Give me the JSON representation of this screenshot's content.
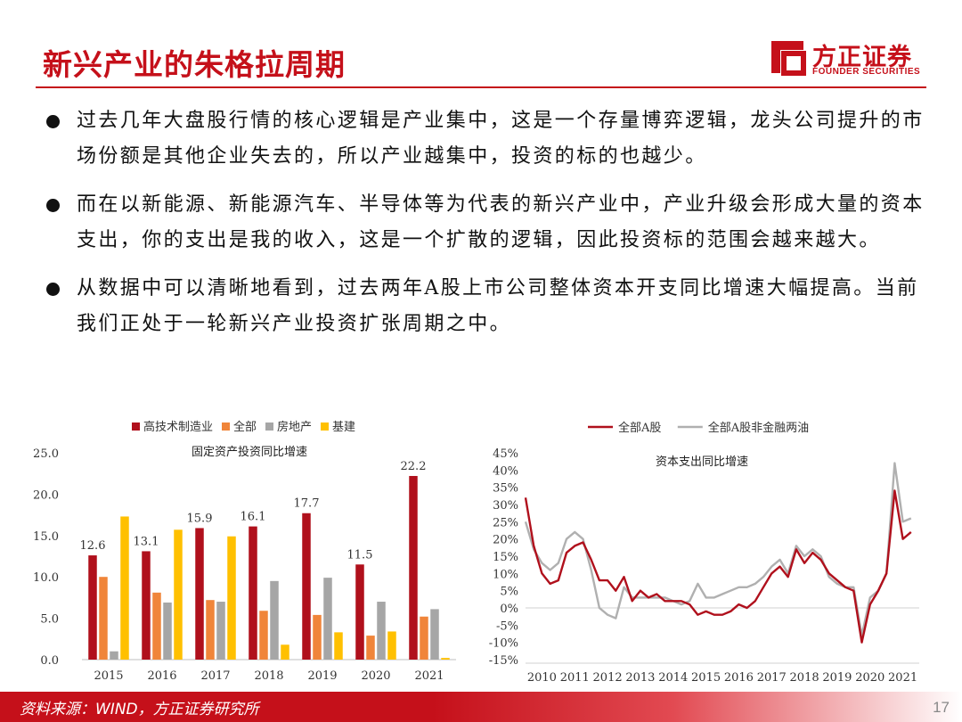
{
  "header": {
    "title": "新兴产业的朱格拉周期",
    "logo_name": "方正证券",
    "logo_sub": "FOUNDER SECURITIES"
  },
  "bullets": [
    "过去几年大盘股行情的核心逻辑是产业集中，这是一个存量博弈逻辑，龙头公司提升的市场份额是其他企业失去的，所以产业越集中，投资的标的也越少。",
    "而在以新能源、新能源汽车、半导体等为代表的新兴产业中，产业升级会形成大量的资本支出，你的支出是我的收入，这是一个扩散的逻辑，因此投资标的范围会越来越大。",
    "从数据中可以清晰地看到，过去两年A股上市公司整体资本开支同比增速大幅提高。当前我们正处于一轮新兴产业投资扩张周期之中。"
  ],
  "footer": {
    "source": "资料来源：WIND，方正证券研究所",
    "page": "17"
  },
  "colors": {
    "brand_red": "#c5101a",
    "series_dark_red": "#b0101c",
    "series_orange": "#f0853a",
    "series_gray": "#a6a6a6",
    "series_yellow": "#ffc000",
    "line_gray": "#b0b0b0"
  },
  "chart_data": [
    {
      "type": "bar",
      "title": "固定资产投资同比增速",
      "categories": [
        "2015",
        "2016",
        "2017",
        "2018",
        "2019",
        "2020",
        "2021"
      ],
      "ylim": [
        0,
        25
      ],
      "yticks": [
        "0.0",
        "5.0",
        "10.0",
        "15.0",
        "20.0",
        "25.0"
      ],
      "legend_position": "top",
      "grid": false,
      "series": [
        {
          "name": "高技术制造业",
          "color": "#b0101c",
          "values": [
            12.6,
            13.1,
            15.9,
            16.1,
            17.7,
            11.5,
            22.2
          ]
        },
        {
          "name": "全部",
          "color": "#f0853a",
          "values": [
            10.0,
            8.1,
            7.2,
            5.9,
            5.4,
            2.9,
            5.2
          ]
        },
        {
          "name": "房地产",
          "color": "#a6a6a6",
          "values": [
            1.0,
            6.9,
            7.0,
            9.5,
            9.9,
            7.0,
            6.1
          ]
        },
        {
          "name": "基建",
          "color": "#ffc000",
          "values": [
            17.3,
            15.7,
            14.9,
            1.8,
            3.3,
            3.4,
            0.2
          ]
        }
      ],
      "data_labels": {
        "series": "高技术制造业",
        "values": [
          "12.6",
          "13.1",
          "15.9",
          "16.1",
          "17.7",
          "11.5",
          "22.2"
        ]
      }
    },
    {
      "type": "line",
      "title": "资本支出同比增速",
      "x_labels": [
        "2010",
        "2011",
        "2012",
        "2013",
        "2014",
        "2015",
        "2016",
        "2017",
        "2018",
        "2019",
        "2020",
        "2021"
      ],
      "xlim": [
        2010.0,
        2022.0
      ],
      "ylim": [
        -15,
        45
      ],
      "yticks": [
        "-15%",
        "-10%",
        "-5%",
        "0%",
        "5%",
        "10%",
        "15%",
        "20%",
        "25%",
        "30%",
        "35%",
        "40%",
        "45%"
      ],
      "legend_position": "top",
      "grid": false,
      "series": [
        {
          "name": "全部A股",
          "color": "#b0101c",
          "points": [
            [
              2010.0,
              32
            ],
            [
              2010.25,
              18
            ],
            [
              2010.5,
              10
            ],
            [
              2010.75,
              7
            ],
            [
              2011.0,
              8
            ],
            [
              2011.25,
              16
            ],
            [
              2011.5,
              18
            ],
            [
              2011.75,
              19
            ],
            [
              2012.0,
              14
            ],
            [
              2012.25,
              8
            ],
            [
              2012.5,
              8
            ],
            [
              2012.75,
              5
            ],
            [
              2013.0,
              9
            ],
            [
              2013.25,
              2
            ],
            [
              2013.5,
              5
            ],
            [
              2013.75,
              3
            ],
            [
              2014.0,
              4
            ],
            [
              2014.25,
              2
            ],
            [
              2014.5,
              2
            ],
            [
              2014.75,
              2
            ],
            [
              2015.0,
              1
            ],
            [
              2015.25,
              -2
            ],
            [
              2015.5,
              -1
            ],
            [
              2015.75,
              -2
            ],
            [
              2016.0,
              -2
            ],
            [
              2016.25,
              -1
            ],
            [
              2016.5,
              1
            ],
            [
              2016.75,
              0
            ],
            [
              2017.0,
              2
            ],
            [
              2017.25,
              6
            ],
            [
              2017.5,
              10
            ],
            [
              2017.75,
              12
            ],
            [
              2018.0,
              9
            ],
            [
              2018.25,
              17
            ],
            [
              2018.5,
              13
            ],
            [
              2018.75,
              16
            ],
            [
              2019.0,
              14
            ],
            [
              2019.25,
              10
            ],
            [
              2019.5,
              8
            ],
            [
              2019.75,
              6
            ],
            [
              2020.0,
              5
            ],
            [
              2020.25,
              -10
            ],
            [
              2020.5,
              1
            ],
            [
              2020.75,
              5
            ],
            [
              2021.0,
              10
            ],
            [
              2021.25,
              34
            ],
            [
              2021.5,
              20
            ],
            [
              2021.75,
              22
            ]
          ]
        },
        {
          "name": "全部A股非金融两油",
          "color": "#b0b0b0",
          "points": [
            [
              2010.0,
              25
            ],
            [
              2010.25,
              17
            ],
            [
              2010.5,
              13
            ],
            [
              2010.75,
              11
            ],
            [
              2011.0,
              13
            ],
            [
              2011.25,
              20
            ],
            [
              2011.5,
              22
            ],
            [
              2011.75,
              20
            ],
            [
              2012.0,
              11
            ],
            [
              2012.25,
              0
            ],
            [
              2012.5,
              -2
            ],
            [
              2012.75,
              -3
            ],
            [
              2013.0,
              6
            ],
            [
              2013.25,
              3
            ],
            [
              2013.5,
              3
            ],
            [
              2013.75,
              3
            ],
            [
              2014.0,
              3
            ],
            [
              2014.25,
              3
            ],
            [
              2014.5,
              2
            ],
            [
              2014.75,
              1
            ],
            [
              2015.0,
              2
            ],
            [
              2015.25,
              7
            ],
            [
              2015.5,
              3
            ],
            [
              2015.75,
              3
            ],
            [
              2016.0,
              4
            ],
            [
              2016.25,
              5
            ],
            [
              2016.5,
              6
            ],
            [
              2016.75,
              6
            ],
            [
              2017.0,
              7
            ],
            [
              2017.25,
              9
            ],
            [
              2017.5,
              12
            ],
            [
              2017.75,
              14
            ],
            [
              2018.0,
              10
            ],
            [
              2018.25,
              18
            ],
            [
              2018.5,
              15
            ],
            [
              2018.75,
              17
            ],
            [
              2019.0,
              15
            ],
            [
              2019.25,
              9
            ],
            [
              2019.5,
              7
            ],
            [
              2019.75,
              6
            ],
            [
              2020.0,
              6
            ],
            [
              2020.25,
              -8
            ],
            [
              2020.5,
              3
            ],
            [
              2020.75,
              5
            ],
            [
              2021.0,
              10
            ],
            [
              2021.25,
              42
            ],
            [
              2021.5,
              25
            ],
            [
              2021.75,
              26
            ]
          ]
        }
      ]
    }
  ]
}
